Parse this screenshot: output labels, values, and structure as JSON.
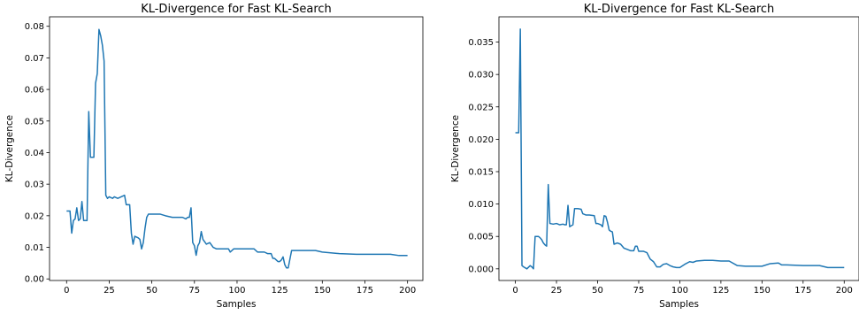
{
  "chart_data": [
    {
      "type": "line",
      "title": "KL-Divergence for Fast KL-Search",
      "xlabel": "Samples",
      "ylabel": "KL-Divergence",
      "xlim": [
        -10,
        209
      ],
      "ylim": [
        -0.0005,
        0.083
      ],
      "xticks": [
        0,
        25,
        50,
        75,
        100,
        125,
        150,
        175,
        200
      ],
      "xtick_labels": [
        "0",
        "25",
        "50",
        "75",
        "100",
        "125",
        "150",
        "175",
        "200"
      ],
      "yticks": [
        0.0,
        0.01,
        0.02,
        0.03,
        0.04,
        0.05,
        0.06,
        0.07,
        0.08
      ],
      "ytick_labels": [
        "0.00",
        "0.01",
        "0.02",
        "0.03",
        "0.04",
        "0.05",
        "0.06",
        "0.07",
        "0.08"
      ],
      "grid": false,
      "color": "#1f77b4",
      "series": [
        {
          "x": [
            0,
            2,
            3,
            4,
            5,
            6,
            7,
            8,
            9,
            10,
            11,
            12,
            13,
            14,
            16,
            17,
            18,
            19,
            20,
            21,
            22,
            23,
            24,
            25,
            27,
            28,
            30,
            32,
            34,
            35,
            37,
            38,
            39,
            40,
            42,
            43,
            44,
            45,
            46,
            47,
            48,
            50,
            52,
            55,
            58,
            62,
            64,
            68,
            70,
            71,
            72,
            73,
            74,
            75,
            76,
            77,
            78,
            79,
            80,
            82,
            84,
            86,
            88,
            90,
            92,
            94,
            95,
            96,
            98,
            100,
            104,
            106,
            108,
            110,
            112,
            116,
            118,
            120,
            121,
            122,
            124,
            125,
            126,
            127,
            128,
            129,
            130,
            132,
            140,
            146,
            150,
            160,
            170,
            180,
            190,
            195,
            200
          ],
          "y": [
            0.0215,
            0.0215,
            0.0145,
            0.0185,
            0.019,
            0.0225,
            0.0185,
            0.019,
            0.0245,
            0.0185,
            0.0185,
            0.0185,
            0.053,
            0.0385,
            0.0385,
            0.062,
            0.065,
            0.079,
            0.077,
            0.074,
            0.069,
            0.0265,
            0.0255,
            0.026,
            0.0255,
            0.026,
            0.0255,
            0.026,
            0.0265,
            0.0235,
            0.0235,
            0.0145,
            0.011,
            0.0135,
            0.013,
            0.0125,
            0.0095,
            0.0115,
            0.016,
            0.0195,
            0.0205,
            0.0205,
            0.0205,
            0.0205,
            0.02,
            0.0195,
            0.0195,
            0.0195,
            0.019,
            0.0195,
            0.0195,
            0.0225,
            0.0115,
            0.0105,
            0.0075,
            0.0105,
            0.0115,
            0.015,
            0.0125,
            0.011,
            0.0115,
            0.01,
            0.0095,
            0.0095,
            0.0095,
            0.0095,
            0.0095,
            0.0085,
            0.0095,
            0.0095,
            0.0095,
            0.0095,
            0.0095,
            0.0095,
            0.0085,
            0.0085,
            0.008,
            0.008,
            0.0065,
            0.0065,
            0.0055,
            0.0055,
            0.006,
            0.007,
            0.0045,
            0.0035,
            0.0035,
            0.009,
            0.009,
            0.009,
            0.0085,
            0.008,
            0.0078,
            0.0078,
            0.0078,
            0.0074,
            0.0074
          ]
        }
      ]
    },
    {
      "type": "line",
      "title": "KL-Divergence for Fast KL-Search",
      "xlabel": "Samples",
      "ylabel": "KL-Divergence",
      "xlim": [
        -10,
        209
      ],
      "ylim": [
        -0.0018,
        0.0389
      ],
      "xticks": [
        0,
        25,
        50,
        75,
        100,
        125,
        150,
        175,
        200
      ],
      "xtick_labels": [
        "0",
        "25",
        "50",
        "75",
        "100",
        "125",
        "150",
        "175",
        "200"
      ],
      "yticks": [
        0.0,
        0.005,
        0.01,
        0.015,
        0.02,
        0.025,
        0.03,
        0.035
      ],
      "ytick_labels": [
        "0.000",
        "0.005",
        "0.010",
        "0.015",
        "0.020",
        "0.025",
        "0.030",
        "0.035"
      ],
      "grid": false,
      "color": "#1f77b4",
      "series": [
        {
          "x": [
            0,
            2,
            3,
            4,
            5,
            7,
            9,
            10,
            11,
            12,
            14,
            15,
            16,
            17,
            18,
            19,
            20,
            21,
            23,
            25,
            27,
            29,
            30,
            31,
            32,
            33,
            35,
            36,
            38,
            40,
            41,
            43,
            45,
            48,
            49,
            50,
            52,
            53,
            54,
            55,
            56,
            57,
            58,
            59,
            60,
            62,
            64,
            66,
            68,
            70,
            72,
            73,
            74,
            75,
            76,
            78,
            80,
            82,
            84,
            86,
            88,
            90,
            92,
            94,
            96,
            98,
            100,
            103,
            106,
            108,
            110,
            115,
            120,
            125,
            130,
            135,
            140,
            145,
            150,
            155,
            160,
            162,
            165,
            175,
            185,
            190,
            200
          ],
          "y": [
            0.021,
            0.021,
            0.037,
            0.0005,
            0.0003,
            0.0,
            0.0005,
            0.0003,
            0.0,
            0.005,
            0.005,
            0.0048,
            0.0045,
            0.004,
            0.0037,
            0.0035,
            0.013,
            0.007,
            0.0069,
            0.007,
            0.0068,
            0.0069,
            0.0068,
            0.0068,
            0.0098,
            0.0065,
            0.0068,
            0.0093,
            0.0093,
            0.0092,
            0.0085,
            0.0083,
            0.0083,
            0.0082,
            0.007,
            0.007,
            0.0068,
            0.0065,
            0.0082,
            0.0081,
            0.0072,
            0.006,
            0.0058,
            0.0057,
            0.0038,
            0.004,
            0.0038,
            0.0032,
            0.003,
            0.0028,
            0.0028,
            0.0035,
            0.0035,
            0.0027,
            0.0027,
            0.0027,
            0.0025,
            0.0015,
            0.0011,
            0.0003,
            0.0003,
            0.0007,
            0.0008,
            0.0005,
            0.0003,
            0.0002,
            0.0002,
            0.0007,
            0.0011,
            0.001,
            0.0012,
            0.0013,
            0.0013,
            0.0012,
            0.0012,
            0.0005,
            0.0004,
            0.0004,
            0.0004,
            0.0008,
            0.0009,
            0.0006,
            0.0006,
            0.0005,
            0.0005,
            0.0002,
            0.0002
          ]
        }
      ]
    }
  ]
}
